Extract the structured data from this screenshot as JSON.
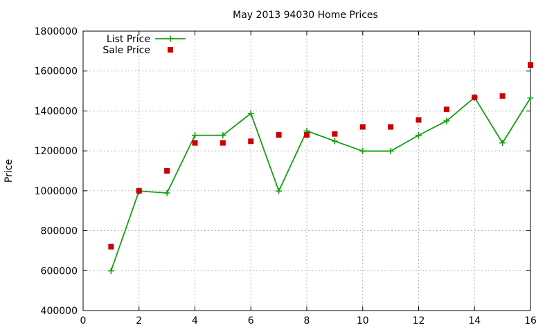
{
  "chart_data": {
    "type": "line",
    "title": "May 2013 94030 Home Prices",
    "xlabel": "",
    "ylabel": "Price",
    "xlim": [
      0,
      16
    ],
    "ylim": [
      400000,
      1800000
    ],
    "xticks": [
      0,
      2,
      4,
      6,
      8,
      10,
      12,
      14,
      16
    ],
    "yticks": [
      400000,
      600000,
      800000,
      1000000,
      1200000,
      1400000,
      1600000,
      1800000
    ],
    "xtick_labels": [
      "0",
      "2",
      "4",
      "6",
      "8",
      "10",
      "12",
      "14",
      "16"
    ],
    "ytick_labels": [
      "400000",
      "600000",
      "800000",
      "1000000",
      "1200000",
      "1400000",
      "1600000",
      "1800000"
    ],
    "grid": true,
    "legend_position": "top-left",
    "series": [
      {
        "name": "List Price",
        "style": "linespoints",
        "marker": "plus",
        "color": "#11a011",
        "x": [
          1,
          2,
          3,
          4,
          5,
          6,
          7,
          8,
          9,
          10,
          11,
          12,
          13,
          14,
          15,
          16
        ],
        "y": [
          599000,
          999000,
          989000,
          1278000,
          1278000,
          1388000,
          999000,
          1300000,
          1249000,
          1199000,
          1199000,
          1278000,
          1350000,
          1468000,
          1240000,
          1465000
        ]
      },
      {
        "name": "Sale Price",
        "style": "points",
        "marker": "square",
        "color": "#cc0000",
        "x": [
          1,
          2,
          3,
          4,
          5,
          6,
          7,
          8,
          9,
          10,
          11,
          12,
          13,
          14,
          15,
          16
        ],
        "y": [
          720000,
          1000000,
          1100000,
          1240000,
          1240000,
          1248000,
          1280000,
          1280000,
          1285000,
          1320000,
          1320000,
          1355000,
          1408000,
          1468000,
          1475000,
          1630000
        ]
      }
    ]
  }
}
